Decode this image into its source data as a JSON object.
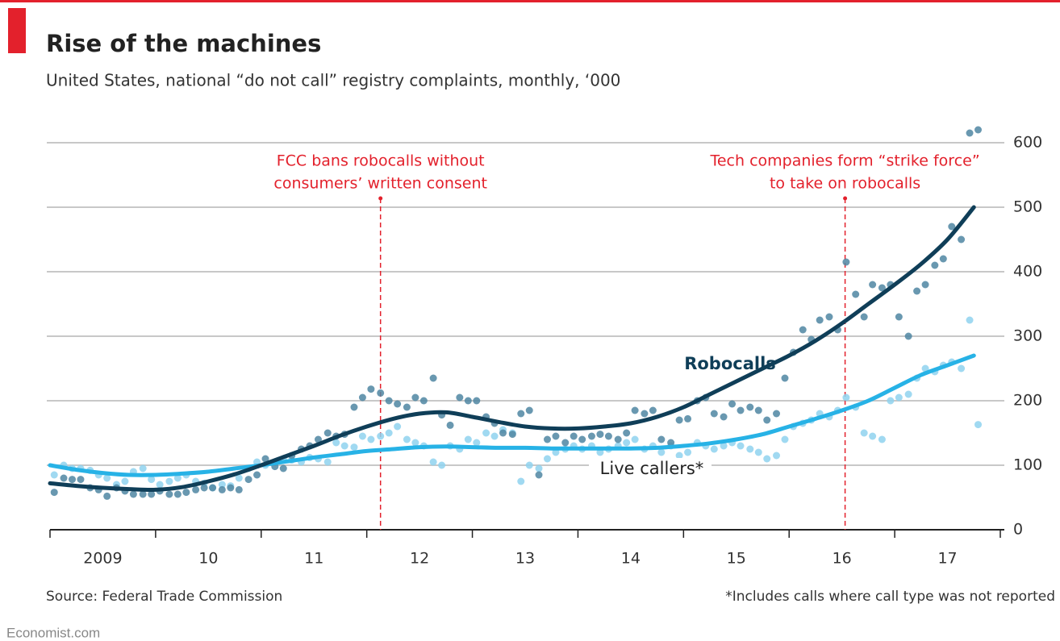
{
  "chart_data": {
    "type": "scatter",
    "title": "Rise of the machines",
    "subtitle": "United States, national “do not call” registry complaints, monthly, ‘000",
    "source": "Source: Federal Trade Commission",
    "footnote": "*Includes calls where call type was not reported",
    "credit": "Economist.com",
    "xlim": [
      2009,
      2018
    ],
    "ylim": [
      0,
      600
    ],
    "yticks": [
      0,
      100,
      200,
      300,
      400,
      500,
      600
    ],
    "xticks": [
      {
        "value": 2009,
        "label": "2009"
      },
      {
        "value": 2010,
        "label": "10"
      },
      {
        "value": 2011,
        "label": "11"
      },
      {
        "value": 2012,
        "label": "12"
      },
      {
        "value": 2013,
        "label": "13"
      },
      {
        "value": 2014,
        "label": "14"
      },
      {
        "value": 2015,
        "label": "15"
      },
      {
        "value": 2016,
        "label": "16"
      },
      {
        "value": 2017,
        "label": "17"
      }
    ],
    "grid": true,
    "x": [
      2009.04,
      2009.13,
      2009.21,
      2009.29,
      2009.38,
      2009.46,
      2009.54,
      2009.63,
      2009.71,
      2009.79,
      2009.88,
      2009.96,
      2010.04,
      2010.13,
      2010.21,
      2010.29,
      2010.38,
      2010.46,
      2010.54,
      2010.63,
      2010.71,
      2010.79,
      2010.88,
      2010.96,
      2011.04,
      2011.13,
      2011.21,
      2011.29,
      2011.38,
      2011.46,
      2011.54,
      2011.63,
      2011.71,
      2011.79,
      2011.88,
      2011.96,
      2012.04,
      2012.13,
      2012.21,
      2012.29,
      2012.38,
      2012.46,
      2012.54,
      2012.63,
      2012.71,
      2012.79,
      2012.88,
      2012.96,
      2013.04,
      2013.13,
      2013.21,
      2013.29,
      2013.38,
      2013.46,
      2013.54,
      2013.63,
      2013.71,
      2013.79,
      2013.88,
      2013.96,
      2014.04,
      2014.13,
      2014.21,
      2014.29,
      2014.38,
      2014.46,
      2014.54,
      2014.63,
      2014.71,
      2014.79,
      2014.88,
      2014.96,
      2015.04,
      2015.13,
      2015.21,
      2015.29,
      2015.38,
      2015.46,
      2015.54,
      2015.63,
      2015.71,
      2015.79,
      2015.88,
      2015.96,
      2016.04,
      2016.13,
      2016.21,
      2016.29,
      2016.38,
      2016.46,
      2016.54,
      2016.63,
      2016.71,
      2016.79,
      2016.88,
      2016.96,
      2017.04,
      2017.13,
      2017.21,
      2017.29,
      2017.38,
      2017.46,
      2017.54,
      2017.63,
      2017.71,
      2017.79
    ],
    "trend_x": [
      2009,
      2009.25,
      2009.5,
      2009.75,
      2010,
      2010.25,
      2010.5,
      2010.75,
      2011,
      2011.25,
      2011.5,
      2011.75,
      2012,
      2012.25,
      2012.5,
      2012.75,
      2013,
      2013.25,
      2013.5,
      2013.75,
      2014,
      2014.25,
      2014.5,
      2014.75,
      2015,
      2015.25,
      2015.5,
      2015.75,
      2016,
      2016.25,
      2016.5,
      2016.75,
      2017,
      2017.25,
      2017.5,
      2017.75
    ],
    "series": [
      {
        "name": "Robocalls",
        "color": "#0f3e58",
        "dot_color": "#4f86a2",
        "values": [
          58,
          80,
          78,
          78,
          65,
          62,
          52,
          65,
          60,
          55,
          55,
          55,
          60,
          55,
          55,
          58,
          62,
          65,
          65,
          62,
          65,
          62,
          78,
          85,
          110,
          98,
          95,
          115,
          125,
          130,
          140,
          150,
          145,
          148,
          190,
          205,
          218,
          212,
          200,
          195,
          190,
          205,
          200,
          235,
          178,
          162,
          205,
          200,
          200,
          175,
          165,
          150,
          148,
          180,
          185,
          85,
          140,
          145,
          135,
          145,
          140,
          145,
          148,
          145,
          140,
          150,
          185,
          180,
          185,
          140,
          135,
          170,
          172,
          200,
          205,
          180,
          175,
          195,
          185,
          190,
          185,
          170,
          180,
          235,
          275,
          310,
          295,
          325,
          330,
          310,
          415,
          365,
          330,
          380,
          375,
          380,
          330,
          300,
          370,
          380,
          410,
          420,
          470,
          450,
          615,
          620
        ],
        "trend": [
          72,
          68,
          65,
          63,
          62,
          66,
          75,
          86,
          100,
          115,
          130,
          146,
          160,
          172,
          180,
          182,
          175,
          167,
          160,
          157,
          157,
          160,
          165,
          175,
          190,
          210,
          230,
          250,
          270,
          293,
          320,
          350,
          380,
          412,
          450,
          500
        ]
      },
      {
        "name": "Live callers*",
        "color": "#27b2e6",
        "dot_color": "#8fd2ee",
        "values": [
          85,
          100,
          95,
          95,
          92,
          85,
          80,
          70,
          75,
          90,
          95,
          78,
          70,
          75,
          80,
          85,
          75,
          72,
          65,
          70,
          68,
          80,
          95,
          105,
          100,
          105,
          110,
          108,
          105,
          112,
          110,
          105,
          135,
          130,
          128,
          145,
          140,
          145,
          150,
          160,
          140,
          135,
          130,
          105,
          100,
          130,
          125,
          140,
          135,
          150,
          145,
          155,
          150,
          75,
          100,
          95,
          110,
          120,
          125,
          130,
          125,
          130,
          120,
          125,
          130,
          135,
          140,
          125,
          130,
          120,
          130,
          115,
          120,
          135,
          130,
          125,
          130,
          135,
          130,
          125,
          120,
          110,
          115,
          140,
          160,
          165,
          170,
          180,
          175,
          185,
          205,
          190,
          150,
          145,
          140,
          200,
          205,
          210,
          235,
          250,
          245,
          255,
          260,
          250,
          325,
          163
        ],
        "trend": [
          100,
          93,
          88,
          85,
          85,
          87,
          90,
          95,
          100,
          106,
          112,
          117,
          122,
          125,
          128,
          129,
          128,
          127,
          127,
          126,
          126,
          126,
          126,
          127,
          130,
          134,
          140,
          148,
          160,
          172,
          185,
          200,
          220,
          240,
          255,
          270
        ]
      }
    ],
    "annotations": [
      {
        "x": 2012.13,
        "lines": [
          "FCC bans robocalls without",
          "consumers’ written consent"
        ],
        "color": "#e3212c"
      },
      {
        "x": 2016.53,
        "lines": [
          "Tech companies form “strike force”",
          "to take on robocalls"
        ],
        "color": "#e3212c"
      }
    ]
  }
}
